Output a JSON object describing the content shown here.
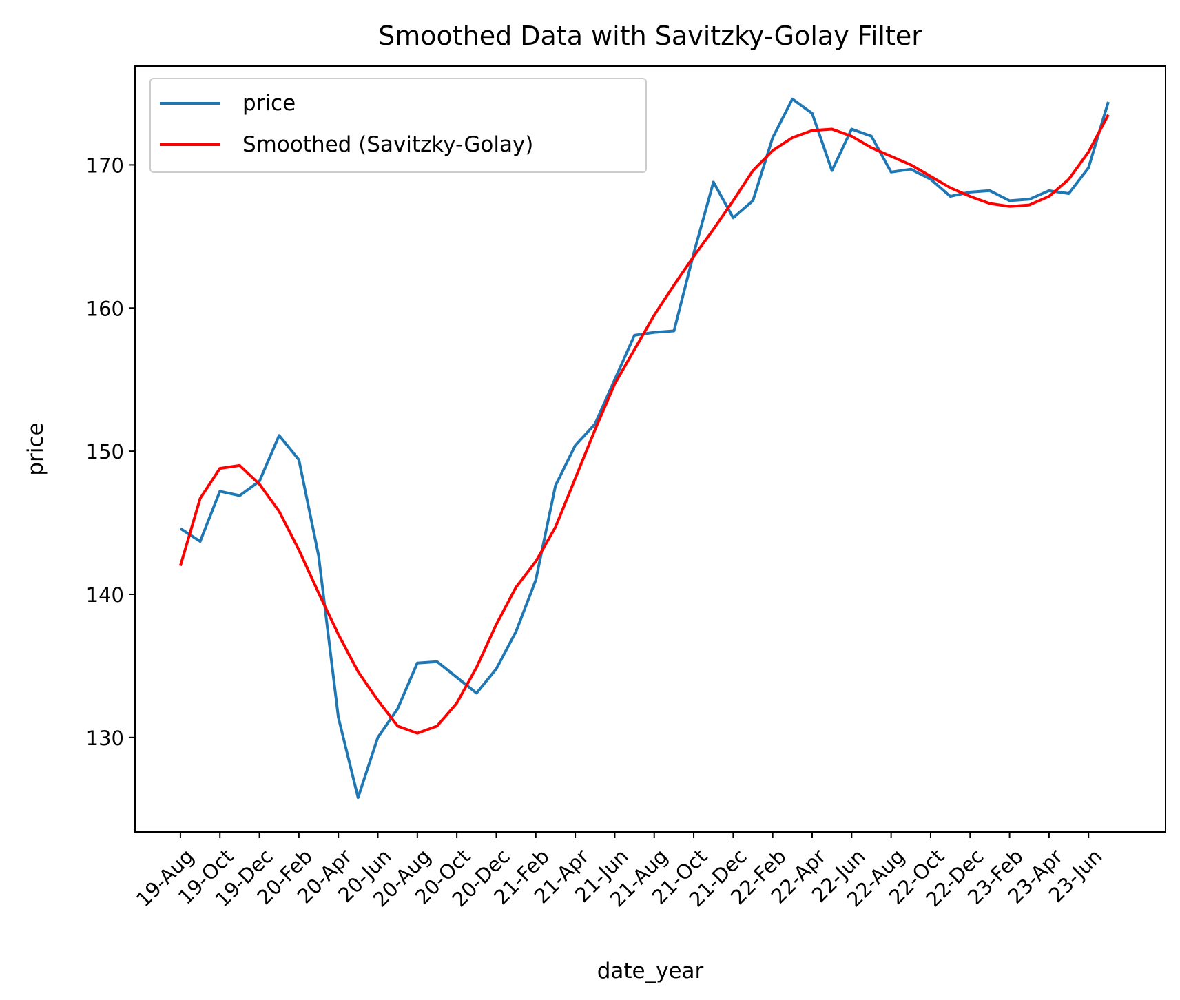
{
  "chart_data": {
    "type": "line",
    "title": "Smoothed Data with Savitzky-Golay Filter",
    "xlabel": "date_year",
    "ylabel": "price",
    "ylim": [
      123.4,
      176.9
    ],
    "yticks": [
      130,
      140,
      150,
      160,
      170
    ],
    "xlim": [
      -2.3,
      49.9
    ],
    "tick_positions": [
      0,
      2,
      4,
      6,
      8,
      10,
      12,
      14,
      16,
      18,
      20,
      22,
      24,
      26,
      28,
      30,
      32,
      34,
      36,
      38,
      40,
      42,
      44,
      46
    ],
    "categories": [
      "19-Aug",
      "19-Oct",
      "19-Dec",
      "20-Feb",
      "20-Apr",
      "20-Jun",
      "20-Aug",
      "20-Oct",
      "20-Dec",
      "21-Feb",
      "21-Apr",
      "21-Jun",
      "21-Aug",
      "21-Oct",
      "21-Dec",
      "22-Feb",
      "22-Apr",
      "22-Jun",
      "22-Aug",
      "22-Oct",
      "22-Dec",
      "23-Feb",
      "23-Apr",
      "23-Jun"
    ],
    "x": [
      0,
      1,
      2,
      3,
      4,
      5,
      6,
      7,
      8,
      9,
      10,
      11,
      12,
      13,
      14,
      15,
      16,
      17,
      18,
      19,
      20,
      21,
      22,
      23,
      24,
      25,
      26,
      27,
      28,
      29,
      30,
      31,
      32,
      33,
      34,
      35,
      36,
      37,
      38,
      39,
      40,
      41,
      42,
      43,
      44,
      45,
      46,
      47
    ],
    "series": [
      {
        "name": "price",
        "color": "#1f77b4",
        "values": [
          144.6,
          143.7,
          147.2,
          146.9,
          147.9,
          151.1,
          149.4,
          142.7,
          131.4,
          125.8,
          130.0,
          132.0,
          135.2,
          135.3,
          134.2,
          133.1,
          134.8,
          137.4,
          141.0,
          147.6,
          150.4,
          151.9,
          155.0,
          158.1,
          158.3,
          158.4,
          163.8,
          168.8,
          166.3,
          167.5,
          171.9,
          174.6,
          173.6,
          169.6,
          172.5,
          172.0,
          169.5,
          169.7,
          169.0,
          167.8,
          168.1,
          168.2,
          167.5,
          167.6,
          168.2,
          168.0,
          169.8,
          174.4
        ]
      },
      {
        "name": "Smoothed (Savitzky-Golay)",
        "color": "#ff0000",
        "values": [
          142.0,
          146.7,
          148.8,
          149.0,
          147.7,
          145.8,
          143.1,
          140.1,
          137.2,
          134.6,
          132.6,
          130.8,
          130.3,
          130.8,
          132.4,
          134.9,
          137.9,
          140.5,
          142.3,
          144.7,
          148.1,
          151.5,
          154.7,
          157.1,
          159.5,
          161.6,
          163.6,
          165.5,
          167.5,
          169.6,
          171.0,
          171.9,
          172.4,
          172.5,
          172.0,
          171.2,
          170.6,
          170.0,
          169.2,
          168.4,
          167.8,
          167.3,
          167.1,
          167.2,
          167.8,
          169.0,
          170.9,
          173.5
        ]
      }
    ],
    "legend": {
      "placement": "upper-left"
    },
    "grid": false
  }
}
